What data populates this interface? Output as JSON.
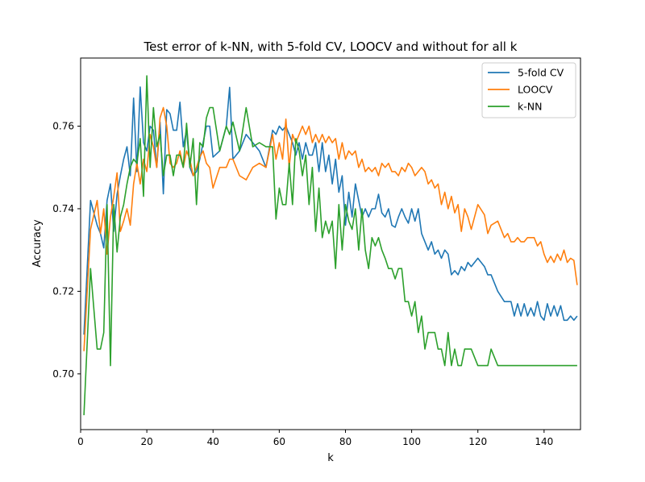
{
  "chart_data": {
    "type": "line",
    "title": "Test error of k-NN, with 5-fold CV, LOOCV and without for all k",
    "xlabel": "k",
    "ylabel": "Accuracy",
    "xlim": [
      0,
      151
    ],
    "ylim": [
      0.6865,
      0.7765
    ],
    "xticks": [
      0,
      20,
      40,
      60,
      80,
      100,
      120,
      140
    ],
    "yticks": [
      0.7,
      0.72,
      0.74,
      0.76
    ],
    "ytick_labels": [
      "0.70",
      "0.72",
      "0.74",
      "0.76"
    ],
    "grid": false,
    "legend_position": "upper right",
    "series": [
      {
        "name": "5-fold CV",
        "color": "#1f77b4",
        "x": [
          1,
          3,
          5,
          6,
          7,
          8,
          9,
          10,
          11,
          12,
          13,
          14,
          15,
          16,
          17,
          18,
          19,
          20,
          21,
          22,
          23,
          24,
          25,
          26,
          27,
          28,
          29,
          30,
          31,
          32,
          33,
          34,
          35,
          36,
          37,
          38,
          39,
          40,
          42,
          44,
          45,
          46,
          48,
          50,
          52,
          54,
          56,
          58,
          59,
          60,
          61,
          62,
          63,
          64,
          65,
          66,
          67,
          68,
          69,
          70,
          71,
          72,
          73,
          74,
          75,
          76,
          77,
          78,
          79,
          80,
          81,
          82,
          83,
          84,
          85,
          86,
          87,
          88,
          89,
          90,
          91,
          92,
          93,
          94,
          95,
          96,
          97,
          98,
          99,
          100,
          101,
          102,
          103,
          104,
          105,
          106,
          107,
          108,
          109,
          110,
          111,
          112,
          113,
          114,
          115,
          116,
          117,
          118,
          120,
          122,
          123,
          124,
          126,
          128,
          129,
          130,
          131,
          132,
          133,
          134,
          135,
          136,
          137,
          138,
          139,
          140,
          141,
          142,
          143,
          144,
          145,
          146,
          147,
          148,
          149,
          150
        ],
        "y": [
          0.7095,
          0.742,
          0.736,
          0.734,
          0.7305,
          0.742,
          0.746,
          0.7345,
          0.7435,
          0.748,
          0.752,
          0.755,
          0.748,
          0.7668,
          0.749,
          0.7695,
          0.756,
          0.754,
          0.76,
          0.759,
          0.75,
          0.761,
          0.7436,
          0.764,
          0.763,
          0.759,
          0.759,
          0.7658,
          0.755,
          0.759,
          0.75,
          0.748,
          0.749,
          0.752,
          0.756,
          0.76,
          0.76,
          0.7525,
          0.754,
          0.76,
          0.7694,
          0.752,
          0.754,
          0.758,
          0.756,
          0.754,
          0.75,
          0.759,
          0.758,
          0.76,
          0.759,
          0.76,
          0.758,
          0.756,
          0.753,
          0.756,
          0.752,
          0.756,
          0.753,
          0.753,
          0.756,
          0.749,
          0.756,
          0.749,
          0.753,
          0.746,
          0.752,
          0.744,
          0.748,
          0.736,
          0.744,
          0.738,
          0.746,
          0.742,
          0.738,
          0.74,
          0.738,
          0.74,
          0.74,
          0.7435,
          0.739,
          0.738,
          0.74,
          0.736,
          0.7355,
          0.738,
          0.74,
          0.738,
          0.7365,
          0.74,
          0.737,
          0.74,
          0.734,
          0.732,
          0.73,
          0.732,
          0.729,
          0.73,
          0.728,
          0.73,
          0.729,
          0.724,
          0.725,
          0.724,
          0.726,
          0.725,
          0.727,
          0.726,
          0.728,
          0.726,
          0.724,
          0.724,
          0.72,
          0.7175,
          0.7175,
          0.7175,
          0.714,
          0.717,
          0.714,
          0.717,
          0.714,
          0.716,
          0.714,
          0.7175,
          0.714,
          0.713,
          0.717,
          0.714,
          0.7165,
          0.714,
          0.7165,
          0.713,
          0.713,
          0.714,
          0.713,
          0.714
        ]
      },
      {
        "name": "LOOCV",
        "color": "#ff7f0e",
        "x": [
          1,
          3,
          5,
          6,
          7,
          8,
          9,
          10,
          11,
          12,
          13,
          14,
          15,
          16,
          17,
          18,
          19,
          20,
          21,
          22,
          23,
          24,
          25,
          26,
          27,
          28,
          29,
          30,
          31,
          32,
          33,
          34,
          35,
          36,
          37,
          38,
          39,
          40,
          42,
          44,
          45,
          46,
          48,
          50,
          52,
          54,
          56,
          58,
          59,
          60,
          61,
          62,
          63,
          64,
          65,
          66,
          67,
          68,
          69,
          70,
          71,
          72,
          73,
          74,
          75,
          76,
          77,
          78,
          79,
          80,
          81,
          82,
          83,
          84,
          85,
          86,
          87,
          88,
          89,
          90,
          91,
          92,
          93,
          94,
          95,
          96,
          97,
          98,
          99,
          100,
          101,
          102,
          103,
          104,
          105,
          106,
          107,
          108,
          109,
          110,
          111,
          112,
          113,
          114,
          115,
          116,
          117,
          118,
          120,
          122,
          123,
          124,
          126,
          128,
          129,
          130,
          131,
          132,
          133,
          134,
          135,
          136,
          137,
          138,
          139,
          140,
          141,
          142,
          143,
          144,
          145,
          146,
          147,
          148,
          149,
          150
        ],
        "y": [
          0.7055,
          0.735,
          0.742,
          0.734,
          0.74,
          0.729,
          0.738,
          0.743,
          0.7487,
          0.7345,
          0.737,
          0.74,
          0.736,
          0.746,
          0.751,
          0.746,
          0.752,
          0.749,
          0.758,
          0.755,
          0.75,
          0.762,
          0.7645,
          0.76,
          0.751,
          0.75,
          0.751,
          0.754,
          0.75,
          0.754,
          0.752,
          0.748,
          0.75,
          0.7525,
          0.754,
          0.751,
          0.75,
          0.745,
          0.75,
          0.75,
          0.752,
          0.752,
          0.748,
          0.747,
          0.75,
          0.751,
          0.75,
          0.758,
          0.752,
          0.756,
          0.752,
          0.7617,
          0.75,
          0.758,
          0.756,
          0.758,
          0.76,
          0.758,
          0.76,
          0.756,
          0.758,
          0.756,
          0.758,
          0.756,
          0.7575,
          0.756,
          0.757,
          0.752,
          0.756,
          0.752,
          0.754,
          0.753,
          0.754,
          0.75,
          0.752,
          0.749,
          0.75,
          0.749,
          0.75,
          0.748,
          0.751,
          0.75,
          0.751,
          0.749,
          0.749,
          0.748,
          0.75,
          0.749,
          0.751,
          0.75,
          0.748,
          0.749,
          0.75,
          0.749,
          0.746,
          0.747,
          0.745,
          0.746,
          0.741,
          0.744,
          0.74,
          0.743,
          0.739,
          0.741,
          0.7345,
          0.74,
          0.738,
          0.735,
          0.741,
          0.7385,
          0.734,
          0.736,
          0.737,
          0.733,
          0.734,
          0.732,
          0.732,
          0.733,
          0.732,
          0.732,
          0.733,
          0.733,
          0.733,
          0.731,
          0.732,
          0.729,
          0.727,
          0.7285,
          0.727,
          0.729,
          0.7275,
          0.73,
          0.727,
          0.728,
          0.7275,
          0.7215
        ]
      },
      {
        "name": "k-NN",
        "color": "#2ca02c",
        "x": [
          1,
          3,
          5,
          6,
          7,
          8,
          9,
          10,
          11,
          12,
          13,
          14,
          15,
          16,
          17,
          18,
          19,
          20,
          21,
          22,
          23,
          24,
          25,
          26,
          27,
          28,
          29,
          30,
          31,
          32,
          33,
          34,
          35,
          36,
          37,
          38,
          39,
          40,
          42,
          44,
          45,
          46,
          48,
          50,
          52,
          54,
          56,
          58,
          59,
          60,
          61,
          62,
          63,
          64,
          65,
          66,
          67,
          68,
          69,
          70,
          71,
          72,
          73,
          74,
          75,
          76,
          77,
          78,
          79,
          80,
          81,
          82,
          83,
          84,
          85,
          86,
          87,
          88,
          89,
          90,
          91,
          92,
          93,
          94,
          95,
          96,
          97,
          98,
          99,
          100,
          101,
          102,
          103,
          104,
          105,
          106,
          107,
          108,
          109,
          110,
          111,
          112,
          113,
          114,
          115,
          116,
          117,
          118,
          120,
          122,
          123,
          124,
          126,
          128,
          129,
          130,
          131,
          132,
          133,
          134,
          135,
          136,
          137,
          138,
          139,
          140,
          141,
          142,
          143,
          144,
          145,
          146,
          147,
          148,
          149,
          150
        ],
        "y": [
          0.69,
          0.7255,
          0.706,
          0.706,
          0.71,
          0.741,
          0.702,
          0.741,
          0.7295,
          0.738,
          0.741,
          0.746,
          0.75,
          0.752,
          0.751,
          0.757,
          0.743,
          0.7722,
          0.75,
          0.7645,
          0.755,
          0.758,
          0.748,
          0.753,
          0.753,
          0.748,
          0.753,
          0.753,
          0.75,
          0.7607,
          0.75,
          0.757,
          0.741,
          0.756,
          0.755,
          0.762,
          0.7645,
          0.7645,
          0.754,
          0.76,
          0.758,
          0.761,
          0.754,
          0.7645,
          0.755,
          0.756,
          0.755,
          0.755,
          0.7375,
          0.745,
          0.741,
          0.741,
          0.751,
          0.741,
          0.757,
          0.754,
          0.748,
          0.753,
          0.741,
          0.75,
          0.7345,
          0.745,
          0.733,
          0.737,
          0.734,
          0.737,
          0.7255,
          0.741,
          0.73,
          0.741,
          0.737,
          0.735,
          0.74,
          0.73,
          0.74,
          0.73,
          0.7255,
          0.733,
          0.731,
          0.733,
          0.73,
          0.728,
          0.7255,
          0.7255,
          0.723,
          0.7255,
          0.7255,
          0.7175,
          0.7175,
          0.714,
          0.7175,
          0.71,
          0.714,
          0.706,
          0.71,
          0.71,
          0.71,
          0.706,
          0.706,
          0.702,
          0.71,
          0.702,
          0.706,
          0.702,
          0.702,
          0.706,
          0.706,
          0.706,
          0.702,
          0.702,
          0.702,
          0.706,
          0.702,
          0.702,
          0.702,
          0.702,
          0.702,
          0.702,
          0.702,
          0.702,
          0.702,
          0.702,
          0.702,
          0.702,
          0.702,
          0.702,
          0.702,
          0.702,
          0.702,
          0.702,
          0.702,
          0.702,
          0.702,
          0.702,
          0.702,
          0.702
        ]
      }
    ]
  }
}
